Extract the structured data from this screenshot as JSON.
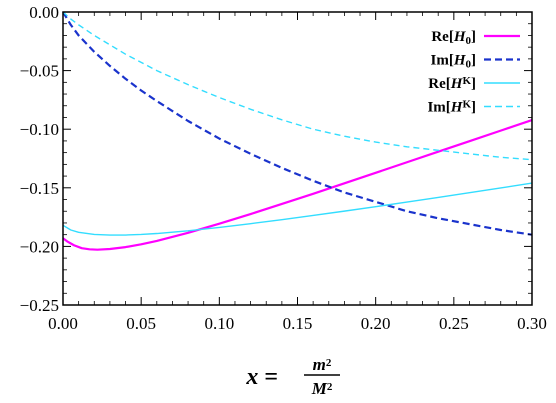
{
  "chart_data": {
    "type": "line",
    "title": "",
    "xlabel": "x = m^2/M^2",
    "xlabel_parts": {
      "lhs": "x",
      "eq": "=",
      "num_base": "m",
      "num_exp": "2",
      "den_base": "M",
      "den_exp": "2"
    },
    "ylabel": "",
    "xlim": [
      0.0,
      0.3
    ],
    "ylim": [
      -0.25,
      0.0
    ],
    "xticks": [
      0.0,
      0.05,
      0.1,
      0.15,
      0.2,
      0.25,
      0.3
    ],
    "xtick_labels": [
      "0.00",
      "0.05",
      "0.10",
      "0.15",
      "0.20",
      "0.25",
      "0.30"
    ],
    "yticks": [
      0.0,
      -0.05,
      -0.1,
      -0.15,
      -0.2,
      -0.25
    ],
    "ytick_labels": [
      "0.00",
      "−0.05",
      "−0.10",
      "−0.15",
      "−0.20",
      "−0.25"
    ],
    "grid": false,
    "legend_position": "top-right",
    "series": [
      {
        "name": "Re[H0]",
        "label_base": "Re[",
        "label_var": "H",
        "label_sub": "0",
        "label_sup": "",
        "label_end": "]",
        "color": "#ff00ff",
        "dash": "solid",
        "width": "thick",
        "x": [
          0.0,
          0.003,
          0.007,
          0.012,
          0.017,
          0.022,
          0.03,
          0.04,
          0.05,
          0.06,
          0.08,
          0.1,
          0.12,
          0.14,
          0.16,
          0.18,
          0.2,
          0.22,
          0.24,
          0.26,
          0.28,
          0.3
        ],
        "y": [
          -0.193,
          -0.196,
          -0.199,
          -0.2015,
          -0.2025,
          -0.2028,
          -0.2022,
          -0.2006,
          -0.1982,
          -0.1953,
          -0.1884,
          -0.1806,
          -0.1724,
          -0.1638,
          -0.1551,
          -0.1462,
          -0.1372,
          -0.1282,
          -0.1192,
          -0.1102,
          -0.1012,
          -0.0922
        ]
      },
      {
        "name": "Im[H0]",
        "label_base": "Im[",
        "label_var": "H",
        "label_sub": "0",
        "label_sup": "",
        "label_end": "]",
        "color": "#1a33cc",
        "dash": "dashed",
        "width": "thick",
        "x": [
          0.0,
          0.005,
          0.01,
          0.02,
          0.03,
          0.04,
          0.05,
          0.06,
          0.08,
          0.1,
          0.12,
          0.14,
          0.16,
          0.18,
          0.2,
          0.22,
          0.24,
          0.26,
          0.28,
          0.3
        ],
        "y": [
          0.0,
          -0.011,
          -0.02,
          -0.034,
          -0.046,
          -0.057,
          -0.067,
          -0.076,
          -0.093,
          -0.108,
          -0.121,
          -0.133,
          -0.144,
          -0.154,
          -0.162,
          -0.17,
          -0.176,
          -0.181,
          -0.186,
          -0.19
        ]
      },
      {
        "name": "Re[HK]",
        "label_base": "Re[",
        "label_var": "H",
        "label_sub": "",
        "label_sup": "K",
        "label_end": "]",
        "color": "#33ddff",
        "dash": "solid",
        "width": "thin",
        "x": [
          0.0,
          0.005,
          0.01,
          0.02,
          0.03,
          0.04,
          0.05,
          0.06,
          0.08,
          0.1,
          0.12,
          0.14,
          0.16,
          0.18,
          0.2,
          0.22,
          0.24,
          0.26,
          0.28,
          0.3
        ],
        "y": [
          -0.182,
          -0.186,
          -0.188,
          -0.1898,
          -0.1903,
          -0.1903,
          -0.1898,
          -0.189,
          -0.1867,
          -0.1838,
          -0.1806,
          -0.1772,
          -0.1736,
          -0.1699,
          -0.1661,
          -0.1622,
          -0.1582,
          -0.1542,
          -0.1501,
          -0.146
        ]
      },
      {
        "name": "Im[HK]",
        "label_base": "Im[",
        "label_var": "H",
        "label_sub": "",
        "label_sup": "K",
        "label_end": "]",
        "color": "#33ddff",
        "dash": "dashed",
        "width": "thin",
        "x": [
          0.0,
          0.005,
          0.01,
          0.02,
          0.03,
          0.04,
          0.05,
          0.06,
          0.08,
          0.1,
          0.12,
          0.14,
          0.16,
          0.18,
          0.2,
          0.22,
          0.24,
          0.26,
          0.28,
          0.3
        ],
        "y": [
          0.0,
          -0.006,
          -0.011,
          -0.02,
          -0.028,
          -0.036,
          -0.043,
          -0.05,
          -0.062,
          -0.073,
          -0.083,
          -0.092,
          -0.1,
          -0.106,
          -0.111,
          -0.115,
          -0.118,
          -0.121,
          -0.124,
          -0.126
        ]
      }
    ]
  }
}
